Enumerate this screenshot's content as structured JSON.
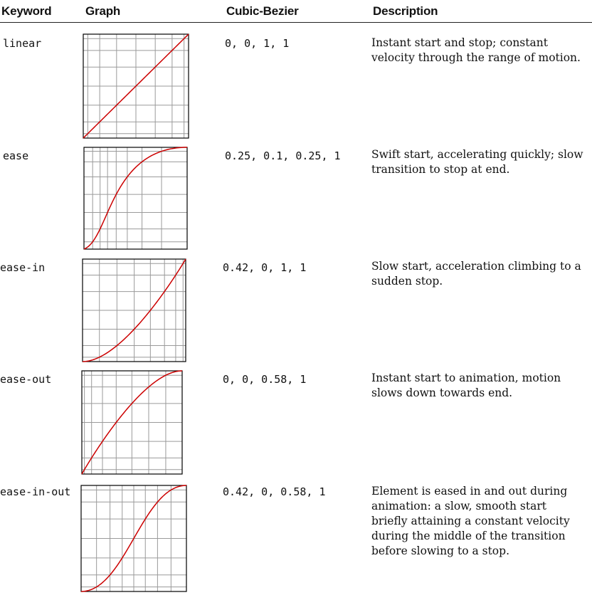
{
  "headers": {
    "keyword": "Keyword",
    "graph": "Graph",
    "cubic_bezier": "Cubic-Bezier",
    "description": "Description"
  },
  "rows": [
    {
      "keyword": "linear",
      "cubic_bezier": "0, 0, 1, 1",
      "bezier_values": [
        0,
        0,
        1,
        1
      ],
      "description": "Instant start and stop; constant velocity through the range of motion."
    },
    {
      "keyword": "ease",
      "cubic_bezier": "0.25, 0.1, 0.25, 1",
      "bezier_values": [
        0.25,
        0.1,
        0.25,
        1
      ],
      "description": "Swift start, accelerating quickly; slow transition to stop at end."
    },
    {
      "keyword": "ease-in",
      "cubic_bezier": "0.42, 0, 1, 1",
      "bezier_values": [
        0.42,
        0,
        1,
        1
      ],
      "description": "Slow start, acceleration climbing to a sudden stop."
    },
    {
      "keyword": "ease-out",
      "cubic_bezier": "0, 0, 0.58, 1",
      "bezier_values": [
        0,
        0,
        0.58,
        1
      ],
      "description": "Instant start to animation, motion slows down towards end."
    },
    {
      "keyword": "ease-in-out",
      "cubic_bezier": "0.42, 0, 0.58, 1",
      "bezier_values": [
        0.42,
        0,
        0.58,
        1
      ],
      "description": "Element is eased in and out during animation: a slow, smooth start briefly attaining a constant velocity during the middle of the transition before slowing to a stop."
    }
  ],
  "colors": {
    "curve": "#cc0000",
    "grid": "#9a9a9a",
    "border": "#000000"
  }
}
